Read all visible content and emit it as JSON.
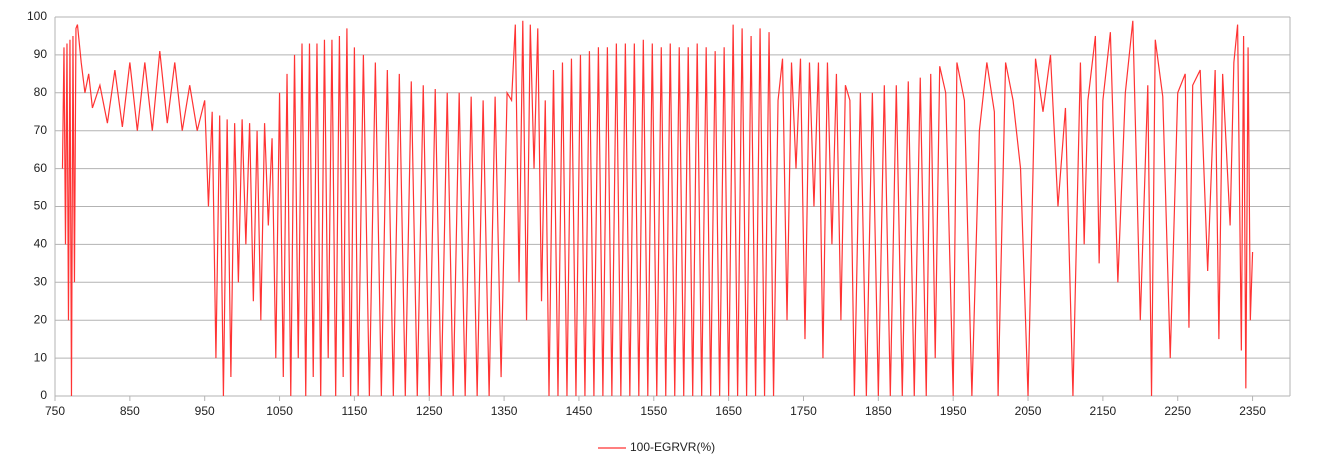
{
  "chart_data": {
    "type": "line",
    "x": [
      760,
      762,
      764,
      766,
      768,
      770,
      772,
      774,
      776,
      778,
      780,
      785,
      790,
      795,
      800,
      810,
      820,
      830,
      840,
      850,
      860,
      870,
      880,
      890,
      900,
      910,
      920,
      930,
      940,
      950,
      955,
      960,
      965,
      970,
      975,
      980,
      985,
      990,
      995,
      1000,
      1005,
      1010,
      1015,
      1020,
      1025,
      1030,
      1035,
      1040,
      1045,
      1050,
      1055,
      1060,
      1065,
      1070,
      1075,
      1080,
      1085,
      1090,
      1095,
      1100,
      1105,
      1110,
      1115,
      1120,
      1125,
      1130,
      1135,
      1140,
      1145,
      1150,
      1155,
      1162,
      1170,
      1178,
      1186,
      1194,
      1202,
      1210,
      1218,
      1226,
      1234,
      1242,
      1250,
      1258,
      1266,
      1274,
      1282,
      1290,
      1298,
      1306,
      1314,
      1322,
      1330,
      1338,
      1346,
      1354,
      1360,
      1365,
      1370,
      1375,
      1380,
      1385,
      1390,
      1395,
      1400,
      1405,
      1410,
      1416,
      1422,
      1428,
      1434,
      1440,
      1446,
      1452,
      1458,
      1464,
      1470,
      1476,
      1482,
      1488,
      1494,
      1500,
      1506,
      1512,
      1518,
      1524,
      1530,
      1536,
      1542,
      1548,
      1554,
      1560,
      1566,
      1572,
      1578,
      1584,
      1590,
      1596,
      1602,
      1608,
      1614,
      1620,
      1626,
      1632,
      1638,
      1644,
      1650,
      1656,
      1662,
      1668,
      1674,
      1680,
      1686,
      1692,
      1698,
      1704,
      1710,
      1716,
      1722,
      1728,
      1734,
      1740,
      1746,
      1752,
      1758,
      1764,
      1770,
      1776,
      1782,
      1788,
      1794,
      1800,
      1806,
      1812,
      1818,
      1826,
      1834,
      1842,
      1850,
      1858,
      1866,
      1874,
      1882,
      1890,
      1898,
      1906,
      1914,
      1920,
      1926,
      1932,
      1940,
      1950,
      1955,
      1965,
      1975,
      1985,
      1995,
      2005,
      2010,
      2020,
      2030,
      2040,
      2050,
      2060,
      2070,
      2080,
      2090,
      2100,
      2110,
      2120,
      2125,
      2130,
      2140,
      2145,
      2150,
      2160,
      2170,
      2180,
      2190,
      2200,
      2210,
      2215,
      2220,
      2230,
      2240,
      2250,
      2260,
      2265,
      2270,
      2280,
      2290,
      2300,
      2305,
      2310,
      2320,
      2325,
      2330,
      2335,
      2338,
      2341,
      2344,
      2347,
      2350
    ],
    "series": [
      {
        "name": "100-EGRVR(%)",
        "color": "#ff3333",
        "values": [
          60,
          92,
          40,
          93,
          20,
          94,
          0,
          95,
          30,
          97,
          98,
          88,
          80,
          85,
          76,
          82,
          72,
          86,
          71,
          88,
          70,
          88,
          70,
          91,
          72,
          88,
          70,
          82,
          70,
          78,
          50,
          75,
          10,
          74,
          0,
          73,
          5,
          72,
          30,
          73,
          40,
          72,
          25,
          70,
          20,
          72,
          45,
          68,
          10,
          80,
          5,
          85,
          0,
          90,
          10,
          93,
          0,
          93,
          5,
          93,
          0,
          94,
          10,
          94,
          0,
          95,
          5,
          97,
          0,
          92,
          0,
          90,
          0,
          88,
          0,
          86,
          0,
          85,
          0,
          83,
          0,
          82,
          0,
          81,
          0,
          80,
          0,
          80,
          0,
          79,
          0,
          78,
          0,
          79,
          5,
          80,
          78,
          98,
          30,
          99,
          20,
          98,
          60,
          97,
          25,
          78,
          0,
          86,
          0,
          88,
          0,
          89,
          0,
          90,
          0,
          91,
          0,
          92,
          0,
          92,
          0,
          93,
          0,
          93,
          0,
          93,
          0,
          94,
          0,
          93,
          0,
          92,
          0,
          93,
          0,
          92,
          0,
          92,
          0,
          93,
          0,
          92,
          0,
          91,
          0,
          92,
          0,
          98,
          0,
          97,
          0,
          95,
          0,
          97,
          0,
          96,
          0,
          78,
          89,
          20,
          88,
          60,
          89,
          15,
          88,
          50,
          88,
          10,
          88,
          40,
          85,
          20,
          82,
          78,
          0,
          80,
          0,
          80,
          0,
          82,
          0,
          82,
          0,
          83,
          0,
          84,
          0,
          85,
          10,
          87,
          80,
          0,
          88,
          78,
          0,
          70,
          88,
          75,
          0,
          88,
          78,
          60,
          0,
          89,
          75,
          90,
          50,
          76,
          0,
          88,
          40,
          78,
          95,
          35,
          78,
          96,
          30,
          80,
          99,
          20,
          82,
          0,
          94,
          79,
          10,
          80,
          85,
          18,
          82,
          86,
          33,
          86,
          15,
          85,
          45,
          88,
          98,
          12,
          95,
          2,
          92,
          20,
          38
        ]
      }
    ],
    "xlim": [
      750,
      2400
    ],
    "ylim": [
      0,
      100
    ],
    "xticks": [
      750,
      850,
      950,
      1050,
      1150,
      1250,
      1350,
      1450,
      1550,
      1650,
      1750,
      1850,
      1950,
      2050,
      2150,
      2250,
      2350
    ],
    "yticks": [
      0,
      10,
      20,
      30,
      40,
      50,
      60,
      70,
      80,
      90,
      100
    ],
    "grid": true,
    "legend": "bottom"
  }
}
